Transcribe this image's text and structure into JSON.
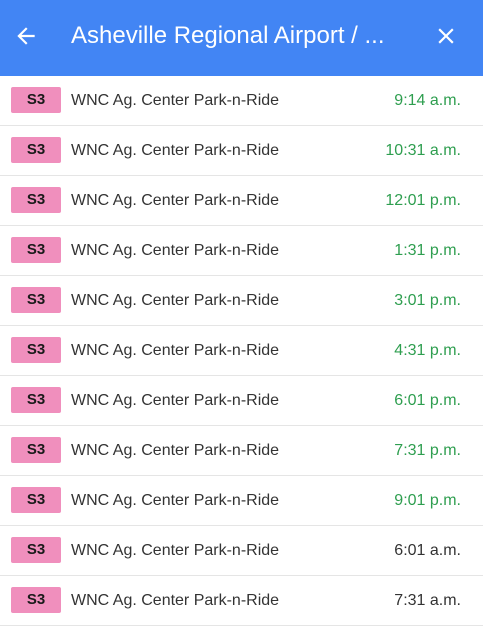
{
  "header": {
    "title": "Asheville Regional Airport / ...",
    "back_icon": "arrow-left-icon",
    "close_icon": "close-icon",
    "background_color": "#4285f4"
  },
  "colors": {
    "realtime_time": "#2e9e4f",
    "scheduled_time": "#333333",
    "route_badge": "#f08fbd"
  },
  "departures": [
    {
      "route": "S3",
      "stop": "WNC Ag. Center Park-n-Ride",
      "time": "9:14 a.m.",
      "realtime": true
    },
    {
      "route": "S3",
      "stop": "WNC Ag. Center Park-n-Ride",
      "time": "10:31 a.m.",
      "realtime": true
    },
    {
      "route": "S3",
      "stop": "WNC Ag. Center Park-n-Ride",
      "time": "12:01 p.m.",
      "realtime": true
    },
    {
      "route": "S3",
      "stop": "WNC Ag. Center Park-n-Ride",
      "time": "1:31 p.m.",
      "realtime": true
    },
    {
      "route": "S3",
      "stop": "WNC Ag. Center Park-n-Ride",
      "time": "3:01 p.m.",
      "realtime": true
    },
    {
      "route": "S3",
      "stop": "WNC Ag. Center Park-n-Ride",
      "time": "4:31 p.m.",
      "realtime": true
    },
    {
      "route": "S3",
      "stop": "WNC Ag. Center Park-n-Ride",
      "time": "6:01 p.m.",
      "realtime": true
    },
    {
      "route": "S3",
      "stop": "WNC Ag. Center Park-n-Ride",
      "time": "7:31 p.m.",
      "realtime": true
    },
    {
      "route": "S3",
      "stop": "WNC Ag. Center Park-n-Ride",
      "time": "9:01 p.m.",
      "realtime": true
    },
    {
      "route": "S3",
      "stop": "WNC Ag. Center Park-n-Ride",
      "time": "6:01 a.m.",
      "realtime": false
    },
    {
      "route": "S3",
      "stop": "WNC Ag. Center Park-n-Ride",
      "time": "7:31 a.m.",
      "realtime": false
    }
  ]
}
